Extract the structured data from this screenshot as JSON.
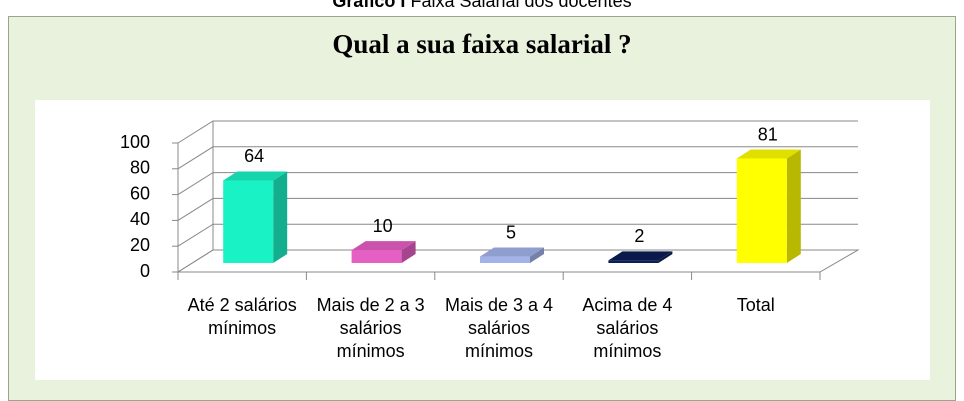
{
  "caption": {
    "label": "Gráfico I",
    "text": "Faixa Salarial dos docentes"
  },
  "chart_data": {
    "type": "bar3d",
    "title": "Qual a sua faixa salarial ?",
    "categories": [
      "Até 2 salários mínimos",
      "Mais de 2 a 3 salários mínimos",
      "Mais de 3 a 4 salários mínimos",
      "Acima de 4 salários mínimos",
      "Total"
    ],
    "values": [
      64,
      10,
      5,
      2,
      81
    ],
    "colors": [
      "#19f2c4",
      "#e65fc4",
      "#a3b3ea",
      "#0b1f55",
      "#ffff00"
    ],
    "ylim": [
      0,
      100
    ],
    "yticks": [
      0,
      20,
      40,
      60,
      80,
      100
    ],
    "grid": true
  }
}
